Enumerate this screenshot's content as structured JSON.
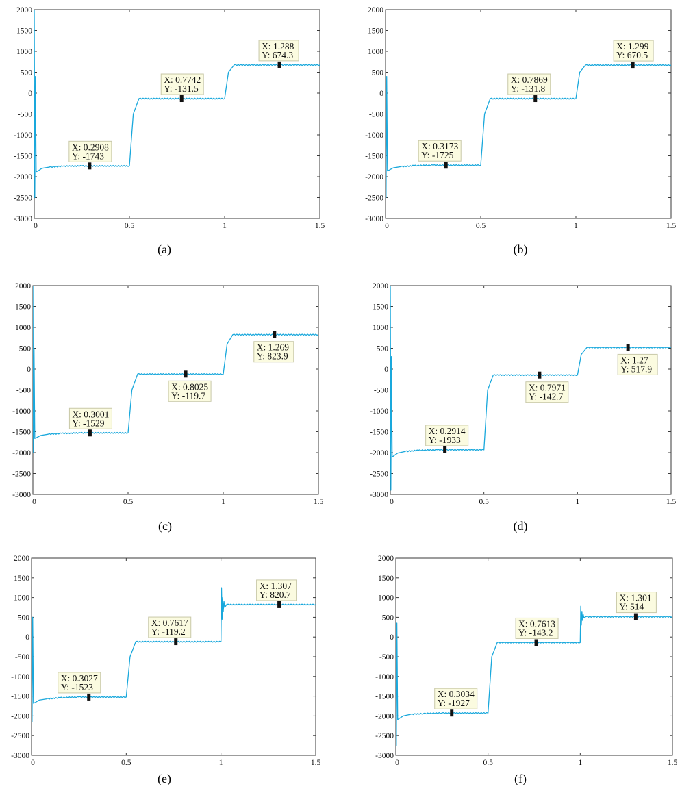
{
  "figure": {
    "panels": [
      {
        "caption": "(a)",
        "chart_data": {
          "type": "line",
          "xlim": [
            0,
            1.5
          ],
          "ylim": [
            -3000,
            2000
          ],
          "x_ticks": [
            "0",
            "0.5",
            "1",
            "1.5"
          ],
          "y_ticks": [
            "2000",
            "1500",
            "1000",
            "500",
            "0",
            "-500",
            "-1000",
            "-1500",
            "-2000",
            "-2500",
            "-3000"
          ],
          "x": [
            0,
            0.003,
            0.006,
            0.01,
            0.015,
            0.02,
            0.04,
            0.08,
            0.15,
            0.25,
            0.5,
            0.52,
            0.55,
            1.0,
            1.02,
            1.05,
            1.5
          ],
          "y": [
            2000,
            -2500,
            400,
            -1880,
            -1870,
            -1860,
            -1800,
            -1770,
            -1750,
            -1743,
            -1743,
            -500,
            -131.5,
            -131.5,
            500,
            674.3,
            674.3
          ],
          "datatips": [
            {
              "x": 0.2908,
              "y": -1743,
              "label_x": "X: 0.2908",
              "label_y": "Y: -1743"
            },
            {
              "x": 0.7742,
              "y": -131.5,
              "label_x": "X: 0.7742",
              "label_y": "Y: -131.5"
            },
            {
              "x": 1.288,
              "y": 674.3,
              "label_x": "X: 1.288",
              "label_y": "Y: 674.3"
            }
          ]
        }
      },
      {
        "caption": "(b)",
        "chart_data": {
          "type": "line",
          "xlim": [
            0,
            1.5
          ],
          "ylim": [
            -3000,
            2000
          ],
          "x_ticks": [
            "0",
            "0.5",
            "1",
            "1.5"
          ],
          "y_ticks": [
            "2000",
            "1500",
            "1000",
            "500",
            "0",
            "-500",
            "-1000",
            "-1500",
            "-2000",
            "-2500",
            "-3000"
          ],
          "x": [
            0,
            0.003,
            0.006,
            0.01,
            0.015,
            0.02,
            0.04,
            0.08,
            0.15,
            0.25,
            0.5,
            0.52,
            0.55,
            1.0,
            1.02,
            1.05,
            1.5
          ],
          "y": [
            2000,
            -2500,
            400,
            -1860,
            -1850,
            -1840,
            -1790,
            -1760,
            -1735,
            -1725,
            -1725,
            -500,
            -131.8,
            -131.8,
            500,
            670.5,
            670.5
          ],
          "datatips": [
            {
              "x": 0.3173,
              "y": -1725,
              "label_x": "X: 0.3173",
              "label_y": "Y: -1725"
            },
            {
              "x": 0.7869,
              "y": -131.8,
              "label_x": "X: 0.7869",
              "label_y": "Y: -131.8"
            },
            {
              "x": 1.299,
              "y": 670.5,
              "label_x": "X: 1.299",
              "label_y": "Y: 670.5"
            }
          ]
        }
      },
      {
        "caption": "(c)",
        "chart_data": {
          "type": "line",
          "xlim": [
            0,
            1.5
          ],
          "ylim": [
            -3000,
            2000
          ],
          "x_ticks": [
            "0",
            "0.5",
            "1",
            "1.5"
          ],
          "y_ticks": [
            "2000",
            "1500",
            "1000",
            "500",
            "0",
            "-500",
            "-1000",
            "-1500",
            "-2000",
            "-2500",
            "-3000"
          ],
          "x": [
            0,
            0.003,
            0.006,
            0.01,
            0.015,
            0.02,
            0.04,
            0.08,
            0.15,
            0.25,
            0.5,
            0.52,
            0.55,
            1.0,
            1.02,
            1.05,
            1.5
          ],
          "y": [
            2000,
            -2000,
            500,
            -1660,
            -1650,
            -1640,
            -1590,
            -1560,
            -1540,
            -1529,
            -1529,
            -500,
            -119.7,
            -119.7,
            600,
            823.9,
            823.9
          ],
          "datatips": [
            {
              "x": 0.3001,
              "y": -1529,
              "label_x": "X: 0.3001",
              "label_y": "Y: -1529"
            },
            {
              "x": 0.8025,
              "y": -119.7,
              "label_x": "X: 0.8025",
              "label_y": "Y: -119.7"
            },
            {
              "x": 1.269,
              "y": 823.9,
              "label_x": "X: 1.269",
              "label_y": "Y: 823.9"
            }
          ]
        }
      },
      {
        "caption": "(d)",
        "chart_data": {
          "type": "line",
          "xlim": [
            0,
            1.5
          ],
          "ylim": [
            -3000,
            2000
          ],
          "x_ticks": [
            "0",
            "0.5",
            "1",
            "1.5"
          ],
          "y_ticks": [
            "2000",
            "1500",
            "1000",
            "500",
            "0",
            "-500",
            "-1000",
            "-1500",
            "-2000",
            "-2500",
            "-3000"
          ],
          "x": [
            0,
            0.003,
            0.006,
            0.01,
            0.015,
            0.02,
            0.04,
            0.08,
            0.15,
            0.25,
            0.5,
            0.52,
            0.55,
            1.0,
            1.02,
            1.05,
            1.5
          ],
          "y": [
            2000,
            -2900,
            300,
            -2100,
            -2090,
            -2070,
            -2010,
            -1970,
            -1945,
            -1933,
            -1933,
            -500,
            -142.7,
            -142.7,
            350,
            517.9,
            517.9
          ],
          "datatips": [
            {
              "x": 0.2914,
              "y": -1933,
              "label_x": "X: 0.2914",
              "label_y": "Y: -1933"
            },
            {
              "x": 0.7971,
              "y": -142.7,
              "label_x": "X: 0.7971",
              "label_y": "Y: -142.7"
            },
            {
              "x": 1.27,
              "y": 517.9,
              "label_x": "X: 1.27",
              "label_y": "Y: 517.9"
            }
          ]
        }
      },
      {
        "caption": "(e)",
        "chart_data": {
          "type": "line",
          "xlim": [
            0,
            1.5
          ],
          "ylim": [
            -3000,
            2000
          ],
          "x_ticks": [
            "0",
            "0.5",
            "1",
            "1.5"
          ],
          "y_ticks": [
            "2000",
            "1500",
            "1000",
            "500",
            "0",
            "-500",
            "-1000",
            "-1500",
            "-2000",
            "-2500",
            "-3000"
          ],
          "x": [
            0,
            0.003,
            0.006,
            0.01,
            0.015,
            0.02,
            0.04,
            0.08,
            0.15,
            0.25,
            0.5,
            0.52,
            0.55,
            1.0,
            1.003,
            1.006,
            1.009,
            1.012,
            1.016,
            1.02,
            1.03,
            1.5
          ],
          "y": [
            2000,
            -2150,
            500,
            -1680,
            -1670,
            -1660,
            -1600,
            -1570,
            -1540,
            -1523,
            -1523,
            -500,
            -119.2,
            -119.2,
            1250,
            450,
            1000,
            650,
            900,
            750,
            820.7,
            820.7
          ],
          "datatips": [
            {
              "x": 0.3027,
              "y": -1523,
              "label_x": "X: 0.3027",
              "label_y": "Y: -1523"
            },
            {
              "x": 0.7617,
              "y": -119.2,
              "label_x": "X: 0.7617",
              "label_y": "Y: -119.2"
            },
            {
              "x": 1.307,
              "y": 820.7,
              "label_x": "X: 1.307",
              "label_y": "Y: 820.7"
            }
          ]
        }
      },
      {
        "caption": "(f)",
        "chart_data": {
          "type": "line",
          "xlim": [
            0,
            1.5
          ],
          "ylim": [
            -3000,
            2000
          ],
          "x_ticks": [
            "0",
            "0.5",
            "1",
            "1.5"
          ],
          "y_ticks": [
            "2000",
            "1500",
            "1000",
            "500",
            "0",
            "-500",
            "-1000",
            "-1500",
            "-2000",
            "-2500",
            "-3000"
          ],
          "x": [
            0,
            0.003,
            0.006,
            0.01,
            0.015,
            0.02,
            0.04,
            0.08,
            0.15,
            0.25,
            0.5,
            0.52,
            0.55,
            1.0,
            1.003,
            1.006,
            1.009,
            1.012,
            1.016,
            1.02,
            1.03,
            1.5
          ],
          "y": [
            2000,
            -2750,
            350,
            -2090,
            -2080,
            -2060,
            -2000,
            -1960,
            -1940,
            -1927,
            -1927,
            -500,
            -143.2,
            -143.2,
            780,
            300,
            650,
            420,
            580,
            490,
            514,
            514
          ],
          "datatips": [
            {
              "x": 0.3034,
              "y": -1927,
              "label_x": "X: 0.3034",
              "label_y": "Y: -1927"
            },
            {
              "x": 0.7613,
              "y": -143.2,
              "label_x": "X: 0.7613",
              "label_y": "Y: -143.2"
            },
            {
              "x": 1.301,
              "y": 514,
              "label_x": "X: 1.301",
              "label_y": "Y: 514"
            }
          ]
        }
      }
    ]
  },
  "colors": {
    "trace": "#19a8dc",
    "datatip_fill": "#fbfbe0",
    "datatip_border": "#c8c8a8",
    "axis": "#3a3a3a"
  }
}
